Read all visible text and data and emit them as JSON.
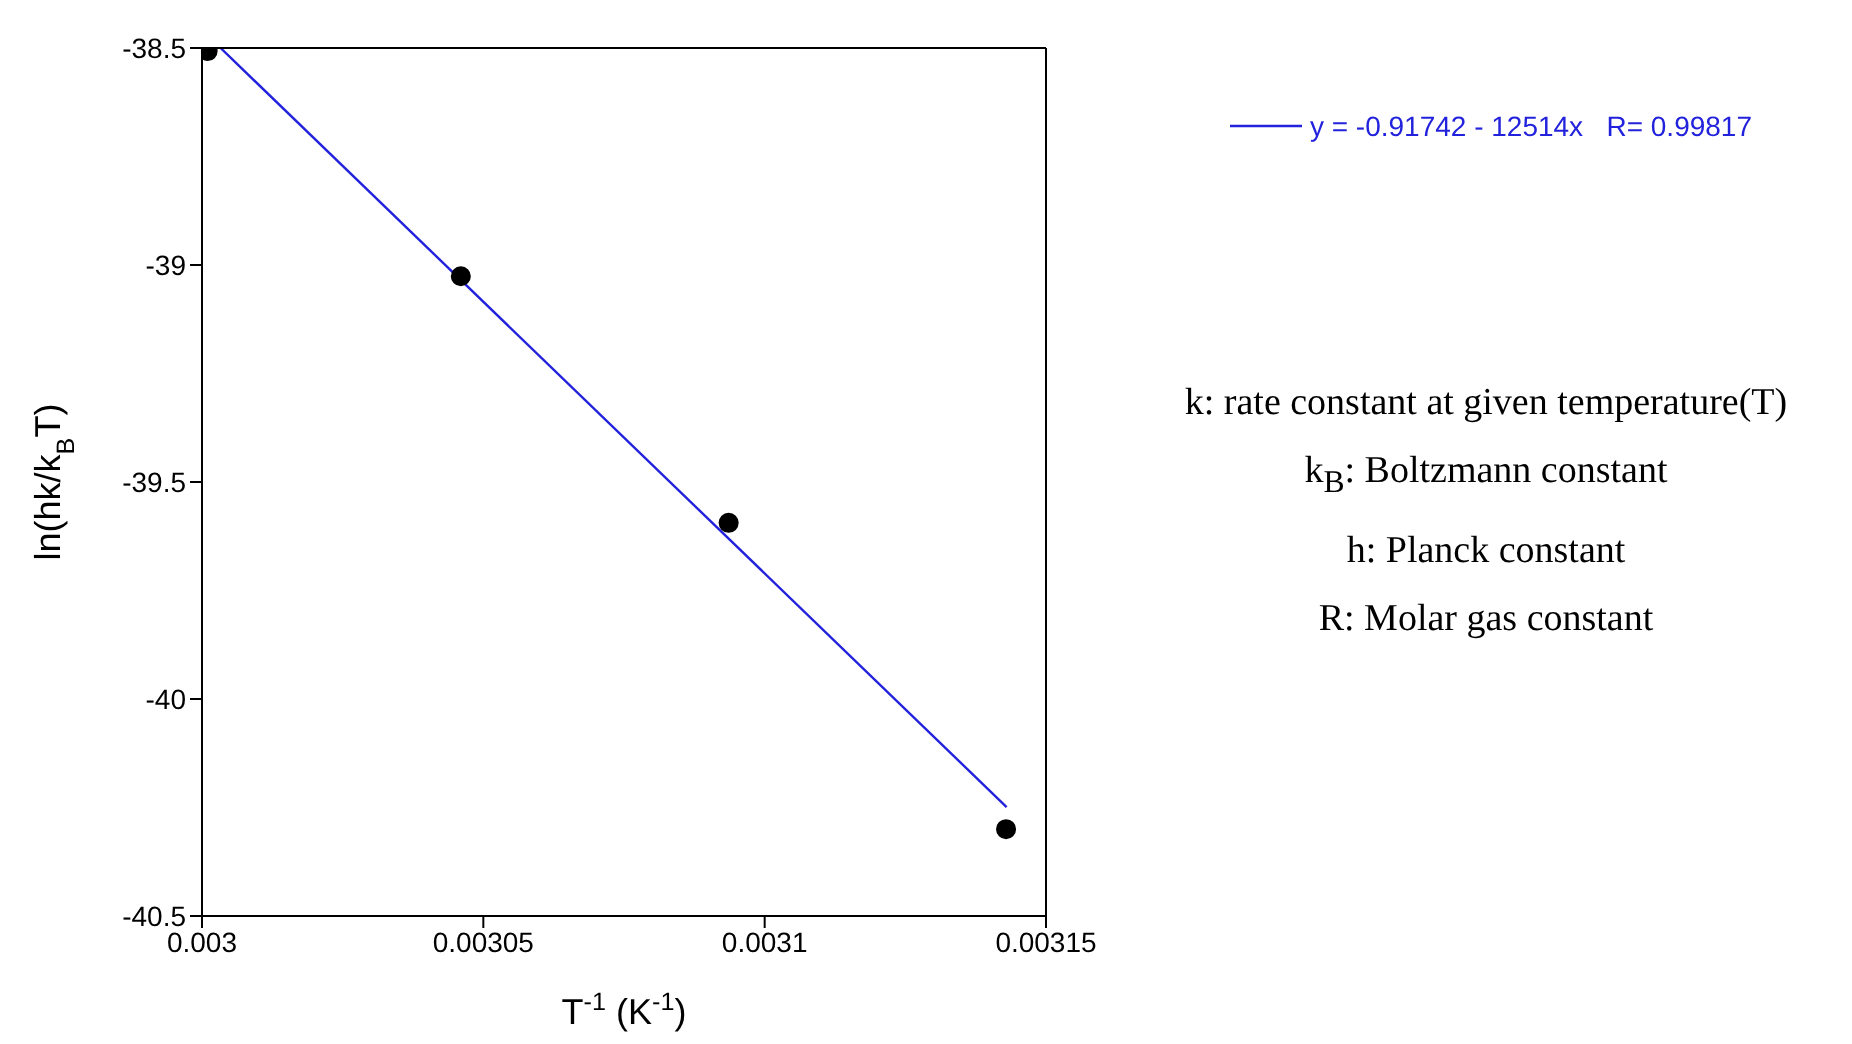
{
  "chart_data": {
    "type": "scatter",
    "xlabel": "T$^{-1}$ (K$^{-1}$)",
    "ylabel": "ln(hk/k$_{B}$T)",
    "xlim": [
      0.003,
      0.00315
    ],
    "xticks": [
      0.003,
      0.00305,
      0.0031,
      0.00315
    ],
    "ylim": [
      -40.5,
      -38.5
    ],
    "yticks": [
      -38.5,
      -39,
      -39.5,
      -40,
      -40.5
    ],
    "marker": "circle",
    "legend": "top right",
    "series": [
      {
        "color": "#000000",
        "x": [
          0.003001,
          0.003046,
          0.0030936,
          0.0031429
        ],
        "values": [
          -38.507,
          -39.026,
          -39.594,
          -40.3
        ]
      },
      {
        "type": "line",
        "name": "y = -0.91742 - 12514x   R= 0.99817",
        "color": "#2222dd",
        "line_style": "solid",
        "marker": "none",
        "x": [
          0.0030033,
          0.003143
        ],
        "values": [
          -38.5,
          -40.249
        ]
      }
    ],
    "annotations": [
      "k: rate constant at given temperature(T)",
      "k$_{B}$: Boltzmann constant",
      "h: Planck constant",
      "R: Molar gas constant"
    ]
  }
}
